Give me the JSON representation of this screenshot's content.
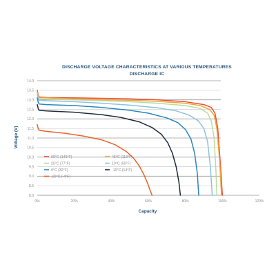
{
  "chart_data": {
    "type": "line",
    "title": "DISCHARGE VOLTAGE CHARACTERISTICS AT VARIOUS TEMPERATURES",
    "subtitle": "DISCHARGE IC",
    "xlabel": "Capacity",
    "ylabel": "Voltage (V)",
    "xlim": [
      0,
      120
    ],
    "ylim": [
      8.0,
      14.0
    ],
    "x_ticks": [
      0,
      20,
      40,
      60,
      80,
      100,
      120
    ],
    "x_tick_labels": [
      "0%",
      "20%",
      "40%",
      "60%",
      "80%",
      "100%",
      "120%"
    ],
    "y_ticks": [
      8.0,
      8.5,
      9.0,
      9.5,
      10.0,
      10.5,
      11.0,
      11.5,
      12.0,
      12.5,
      13.0,
      13.5,
      14.0
    ],
    "y_tick_labels": [
      "8.0",
      "8.5",
      "9.0",
      "9.5",
      "10.0",
      "10.5",
      "11.0",
      "11.5",
      "12.0",
      "12.5",
      "13.0",
      "13.5",
      "14.0"
    ],
    "grid": true,
    "legend_position": "bottom-left",
    "series": [
      {
        "name": "60°C (140°F)",
        "color": "#e8502f",
        "x": [
          0,
          0.5,
          1,
          5,
          20,
          35,
          50,
          65,
          80,
          90,
          94,
          96,
          97.5,
          99,
          100
        ],
        "y": [
          13.5,
          13.25,
          13.15,
          13.12,
          13.1,
          13.08,
          13.05,
          13.0,
          12.9,
          12.75,
          12.6,
          12.3,
          11.5,
          9.5,
          8.0
        ]
      },
      {
        "name": "45°C (113°F)",
        "color": "#f0a23a",
        "x": [
          0,
          0.5,
          1,
          5,
          20,
          35,
          50,
          65,
          80,
          88,
          93,
          95.5,
          97,
          98.5,
          99.5
        ],
        "y": [
          13.4,
          13.2,
          13.12,
          13.1,
          13.05,
          13.0,
          12.98,
          12.92,
          12.82,
          12.7,
          12.5,
          12.2,
          11.5,
          9.8,
          8.0
        ]
      },
      {
        "name": "25°C (77°F)",
        "color": "#b8dba0",
        "x": [
          0,
          0.5,
          1,
          5,
          20,
          35,
          50,
          65,
          80,
          88,
          92,
          94,
          95.5,
          96.5,
          97
        ],
        "y": [
          13.35,
          13.15,
          13.05,
          13.03,
          13.0,
          12.95,
          12.9,
          12.82,
          12.7,
          12.55,
          12.3,
          11.9,
          11.0,
          9.3,
          8.0
        ]
      },
      {
        "name": "10°C (50°F)",
        "color": "#8cc2df",
        "x": [
          0,
          0.5,
          1,
          5,
          20,
          35,
          50,
          65,
          75,
          82,
          87,
          90,
          92,
          93.5,
          94.5
        ],
        "y": [
          13.3,
          13.1,
          12.98,
          12.95,
          12.9,
          12.82,
          12.72,
          12.58,
          12.42,
          12.2,
          11.9,
          11.5,
          10.8,
          9.5,
          8.0
        ]
      },
      {
        "name": "0°C (32°F)",
        "color": "#2a84c0",
        "x": [
          0,
          0.5,
          1,
          5,
          20,
          35,
          50,
          60,
          70,
          76,
          80,
          83,
          85,
          86.5,
          87.2
        ],
        "y": [
          13.1,
          12.88,
          12.78,
          12.75,
          12.7,
          12.6,
          12.45,
          12.3,
          12.05,
          11.8,
          11.45,
          10.95,
          10.2,
          9.1,
          8.0
        ]
      },
      {
        "name": "-10°C (14°F)",
        "color": "#1d2a3a",
        "x": [
          0,
          0.5,
          1,
          5,
          20,
          35,
          45,
          55,
          62,
          67,
          70.5,
          73,
          75,
          76.5,
          77.3
        ],
        "y": [
          12.75,
          12.55,
          12.45,
          12.42,
          12.35,
          12.22,
          12.08,
          11.85,
          11.55,
          11.2,
          10.75,
          10.2,
          9.5,
          8.7,
          8.0
        ]
      },
      {
        "name": "-20°C (-4°F)",
        "color": "#e8612a",
        "x": [
          0,
          0.5,
          1,
          5,
          15,
          25,
          35,
          42,
          48,
          52,
          55,
          57.5,
          59.5,
          61,
          62
        ],
        "y": [
          11.7,
          11.5,
          11.4,
          11.35,
          11.25,
          11.1,
          10.9,
          10.65,
          10.3,
          9.95,
          9.55,
          9.1,
          8.65,
          8.25,
          8.0
        ]
      }
    ],
    "legend_order": [
      0,
      1,
      2,
      3,
      4,
      5,
      6
    ]
  }
}
